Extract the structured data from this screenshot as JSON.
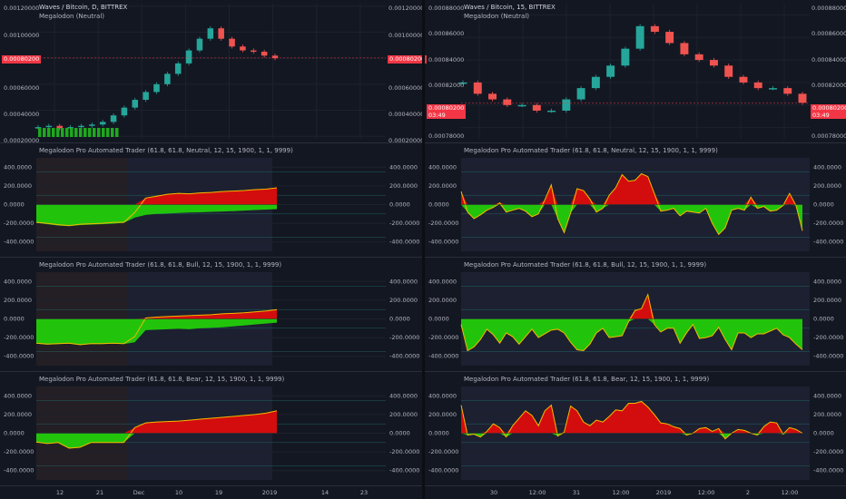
{
  "left": {
    "symbol_title": "Waves / Bitcoin, D, BITTREX",
    "indicator_name": "Megalodon (Neutral)",
    "price_ticks": [
      "0.00120000",
      "0.00100000",
      "0.00080000",
      "0.00060000",
      "0.00040000",
      "0.00020000"
    ],
    "price_values": [
      0.0012,
      0.001,
      0.0008,
      0.0006,
      0.0004,
      0.0002
    ],
    "last_price": "0.00080200",
    "sub_titles": [
      "Megalodon Pro Automated Trader (61.8, 61.8, Neutral, 12, 15, 1900, 1, 1, 9999)",
      "Megalodon Pro Automated Trader (61.8, 61.8, Bull, 12, 15, 1900, 1, 1, 9999)",
      "Megalodon Pro Automated Trader (61.8, 61.8, Bear, 12, 15, 1900, 1, 1, 9999)"
    ],
    "osc_ticks": [
      "400.0000",
      "200.0000",
      "0.0000",
      "-200.0000",
      "-400.0000"
    ],
    "x_ticks": [
      "12",
      "21",
      "Dec",
      "10",
      "19",
      "2019",
      "14",
      "23"
    ]
  },
  "right": {
    "symbol_title": "Waves / Bitcoin, 15, BITTREX",
    "indicator_name": "Megalodon (Neutral)",
    "price_ticks": [
      "0.00088000",
      "0.00086000",
      "0.00084000",
      "0.00082000",
      "0.00080000",
      "0.00078000"
    ],
    "price_values": [
      0.00088,
      0.00086,
      0.00084,
      0.00082,
      0.0008,
      0.00078
    ],
    "last_price": "0.00080200",
    "countdown": "03:49",
    "sub_titles": [
      "Megalodon Pro Automated Trader (61.8, 61.8, Neutral, 12, 15, 1900, 1, 1, 9999)",
      "Megalodon Pro Automated Trader (61.8, 61.8, Bull, 12, 15, 1900, 1, 1, 9999)",
      "Megalodon Pro Automated Trader (61.8, 61.8, Bear, 12, 15, 1900, 1, 1, 9999)"
    ],
    "osc_ticks": [
      "400.0000",
      "200.0000",
      "0.0000",
      "-200.0000",
      "-400.0000"
    ],
    "x_ticks": [
      "30",
      "12:00",
      "31",
      "12:00",
      "2019",
      "12:00",
      "2",
      "12:00"
    ]
  },
  "colors": {
    "bg": "#131722",
    "grid": "#1e222d",
    "bull": "#26a69a",
    "bear": "#ef5350",
    "green_fill": "#22c40b",
    "red_fill": "#d30d0d",
    "line": "#f5b800",
    "price_tag": "#f23645"
  },
  "chart_data": [
    {
      "type": "area",
      "panel": "left-daily-price",
      "title": "Waves / Bitcoin, D, BITTREX",
      "ylim": [
        0.00018,
        0.00122
      ],
      "series": [
        {
          "name": "Megalodon (Neutral)",
          "values": [
            0.00027,
            0.00028,
            0.00026,
            0.00027,
            0.00028,
            0.00029,
            0.00031,
            0.00036,
            0.00042,
            0.00048,
            0.00054,
            0.0006,
            0.00068,
            0.00076,
            0.00086,
            0.00095,
            0.00103,
            0.00095,
            0.00089,
            0.00086,
            0.00085,
            0.00082,
            0.0008
          ]
        }
      ],
      "last": 0.000802
    },
    {
      "type": "area",
      "panel": "left-neutral",
      "ylim": [
        -500,
        500
      ],
      "series": [
        {
          "name": "Neutral",
          "values": [
            -195,
            -210,
            -225,
            -230,
            -220,
            -215,
            -210,
            -205,
            -195,
            -140,
            -110,
            -100,
            -95,
            -90,
            -85,
            -82,
            -78,
            -74,
            -70,
            -64,
            -58,
            -53,
            -48
          ]
        },
        {
          "name": "Neutral",
          "values": [
            -190,
            -200,
            -215,
            -225,
            -210,
            -205,
            -200,
            -190,
            -190,
            -85,
            70,
            90,
            110,
            120,
            115,
            125,
            130,
            140,
            145,
            150,
            160,
            165,
            180
          ]
        }
      ]
    },
    {
      "type": "area",
      "panel": "left-bull",
      "ylim": [
        -500,
        500
      ],
      "series": [
        {
          "name": "Bull",
          "values": [
            -265,
            -275,
            -270,
            -265,
            -280,
            -270,
            -270,
            -265,
            -270,
            -250,
            -120,
            -115,
            -110,
            -105,
            -110,
            -100,
            -95,
            -90,
            -80,
            -70,
            -60,
            -50,
            -40
          ]
        },
        {
          "name": "Bull",
          "values": [
            -260,
            -270,
            -265,
            -260,
            -275,
            -265,
            -265,
            -260,
            -265,
            -190,
            10,
            20,
            25,
            30,
            35,
            40,
            45,
            55,
            60,
            65,
            75,
            85,
            100
          ]
        }
      ]
    },
    {
      "type": "area",
      "panel": "left-bear",
      "ylim": [
        -500,
        500
      ],
      "series": [
        {
          "name": "Bear",
          "values": [
            -95,
            -110,
            -100,
            -160,
            -150,
            -100,
            -100,
            -100,
            -100,
            60,
            110,
            120,
            125,
            130,
            140,
            150,
            160,
            170,
            180,
            190,
            200,
            215,
            240
          ]
        }
      ]
    },
    {
      "type": "line",
      "panel": "right-15m-price",
      "title": "Waves / Bitcoin, 15, BITTREX",
      "ylim": [
        0.00077,
        0.00089
      ],
      "series": [
        {
          "name": "Megalodon (Neutral)",
          "values": [
            0.00082,
            0.00081,
            0.000805,
            0.0008,
            0.0008,
            0.000795,
            0.000795,
            0.000805,
            0.000815,
            0.000825,
            0.000835,
            0.00085,
            0.00087,
            0.000865,
            0.000855,
            0.000845,
            0.00084,
            0.000835,
            0.000825,
            0.00082,
            0.000815,
            0.000815,
            0.00081,
            0.000802
          ]
        }
      ],
      "last": 0.000802
    },
    {
      "type": "area",
      "panel": "right-neutral",
      "ylim": [
        -500,
        500
      ],
      "series": [
        {
          "name": "Neutral",
          "values": [
            140,
            -80,
            -150,
            -110,
            -60,
            -30,
            20,
            -80,
            -60,
            -40,
            -70,
            -130,
            -100,
            50,
            210,
            -150,
            -300,
            -90,
            170,
            150,
            60,
            -80,
            -40,
            100,
            180,
            320,
            250,
            260,
            330,
            300,
            120,
            -70,
            -60,
            -40,
            -120,
            -70,
            -80,
            -90,
            -40,
            -200,
            -320,
            -250,
            -60,
            -40,
            -60,
            80,
            -40,
            -20,
            -70,
            -60,
            -10,
            120,
            -10,
            -280
          ]
        }
      ]
    },
    {
      "type": "area",
      "panel": "right-bull",
      "ylim": [
        -500,
        500
      ],
      "series": [
        {
          "name": "Bull",
          "values": [
            -60,
            -340,
            -300,
            -220,
            -110,
            -170,
            -260,
            -150,
            -190,
            -270,
            -190,
            -110,
            -200,
            -160,
            -120,
            -110,
            -150,
            -250,
            -330,
            -340,
            -270,
            -150,
            -100,
            -200,
            -190,
            -180,
            -30,
            90,
            110,
            260,
            -60,
            -140,
            -100,
            -100,
            -260,
            -150,
            -60,
            -210,
            -200,
            -180,
            -90,
            -220,
            -330,
            -150,
            -150,
            -200,
            -160,
            -160,
            -130,
            -100,
            -170,
            -200,
            -270,
            -330
          ]
        }
      ]
    },
    {
      "type": "area",
      "panel": "right-bear",
      "ylim": [
        -500,
        500
      ],
      "series": [
        {
          "name": "Bear",
          "values": [
            300,
            -20,
            -10,
            -40,
            20,
            100,
            60,
            -40,
            80,
            160,
            240,
            190,
            80,
            240,
            300,
            -30,
            10,
            290,
            240,
            120,
            80,
            140,
            120,
            180,
            250,
            240,
            320,
            320,
            340,
            280,
            200,
            110,
            100,
            70,
            50,
            -20,
            0,
            50,
            60,
            20,
            50,
            -60,
            0,
            40,
            30,
            0,
            -20,
            70,
            120,
            110,
            -10,
            60,
            40,
            0
          ]
        }
      ]
    }
  ]
}
